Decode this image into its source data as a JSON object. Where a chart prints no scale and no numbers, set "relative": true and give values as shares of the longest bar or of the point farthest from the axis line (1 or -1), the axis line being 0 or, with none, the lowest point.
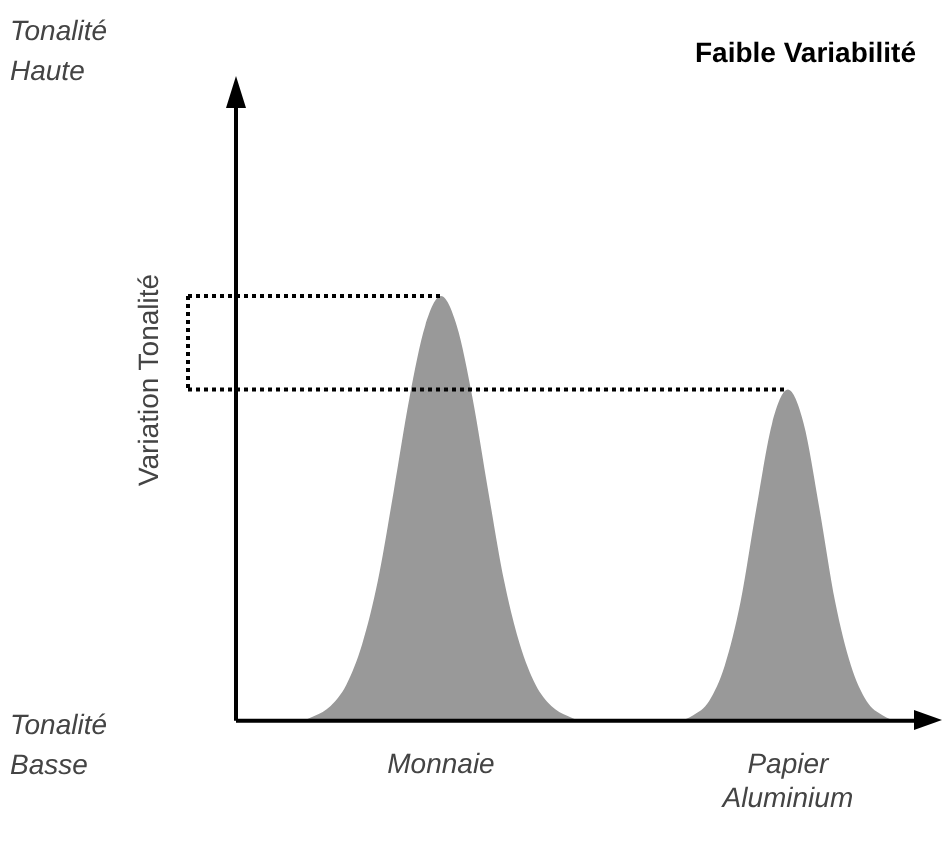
{
  "chart_data": {
    "type": "area",
    "relative": true,
    "title": "Faible Variabilité",
    "ylabel": "Variation Tonalité",
    "annotations": [
      "Tonalité Haute",
      "Tonalité Basse"
    ],
    "categories": [
      null,
      null,
      null,
      null,
      null,
      null,
      null,
      null,
      null,
      null,
      null,
      null,
      null,
      "Monnaie",
      null,
      null,
      null,
      null,
      null,
      null,
      null,
      null,
      null,
      null,
      null,
      null,
      null,
      null,
      null,
      null,
      null,
      null,
      null,
      null,
      null,
      "Papier Aluminium",
      null,
      null,
      null,
      null,
      null,
      null,
      null,
      null
    ],
    "series": [
      {
        "color": "#999999",
        "values": [
          0,
          0,
          0,
          0,
          0,
          0.012,
          0.035,
          0.085,
          0.18,
          0.33,
          0.54,
          0.76,
          0.93,
          1,
          0.93,
          0.76,
          0.54,
          0.33,
          0.18,
          0.085,
          0.035,
          0.012,
          0,
          0,
          0,
          0,
          0,
          0,
          0,
          0.013,
          0.046,
          0.13,
          0.28,
          0.5,
          0.7,
          0.78,
          0.7,
          0.5,
          0.28,
          0.13,
          0.046,
          0.013,
          0,
          0
        ]
      }
    ],
    "ref_lines": [
      {
        "axis": "y",
        "value": 1,
        "line_style": "dotted"
      },
      {
        "axis": "y",
        "value": 0.78,
        "line_style": "dotted"
      }
    ],
    "grid": false,
    "legend": false
  }
}
